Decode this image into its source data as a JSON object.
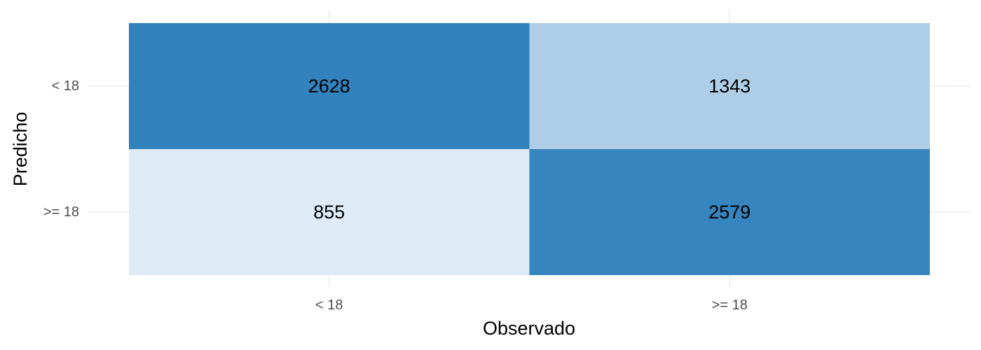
{
  "chart_data": {
    "type": "heatmap",
    "title": "",
    "xlabel": "Observado",
    "ylabel": "Predicho",
    "x_categories": [
      "< 18",
      ">= 18"
    ],
    "y_categories": [
      "< 18",
      ">= 18"
    ],
    "cells": [
      {
        "x": "< 18",
        "y": "< 18",
        "value": 2628,
        "label": "2628"
      },
      {
        "x": ">= 18",
        "y": "< 18",
        "value": 1343,
        "label": "1343"
      },
      {
        "x": "< 18",
        "y": ">= 18",
        "value": 855,
        "label": "855"
      },
      {
        "x": ">= 18",
        "y": ">= 18",
        "value": 2579,
        "label": "2579"
      }
    ],
    "color_scale": {
      "low": "#deebf7",
      "high": "#3182bd"
    },
    "grid": true,
    "legend": "none"
  }
}
